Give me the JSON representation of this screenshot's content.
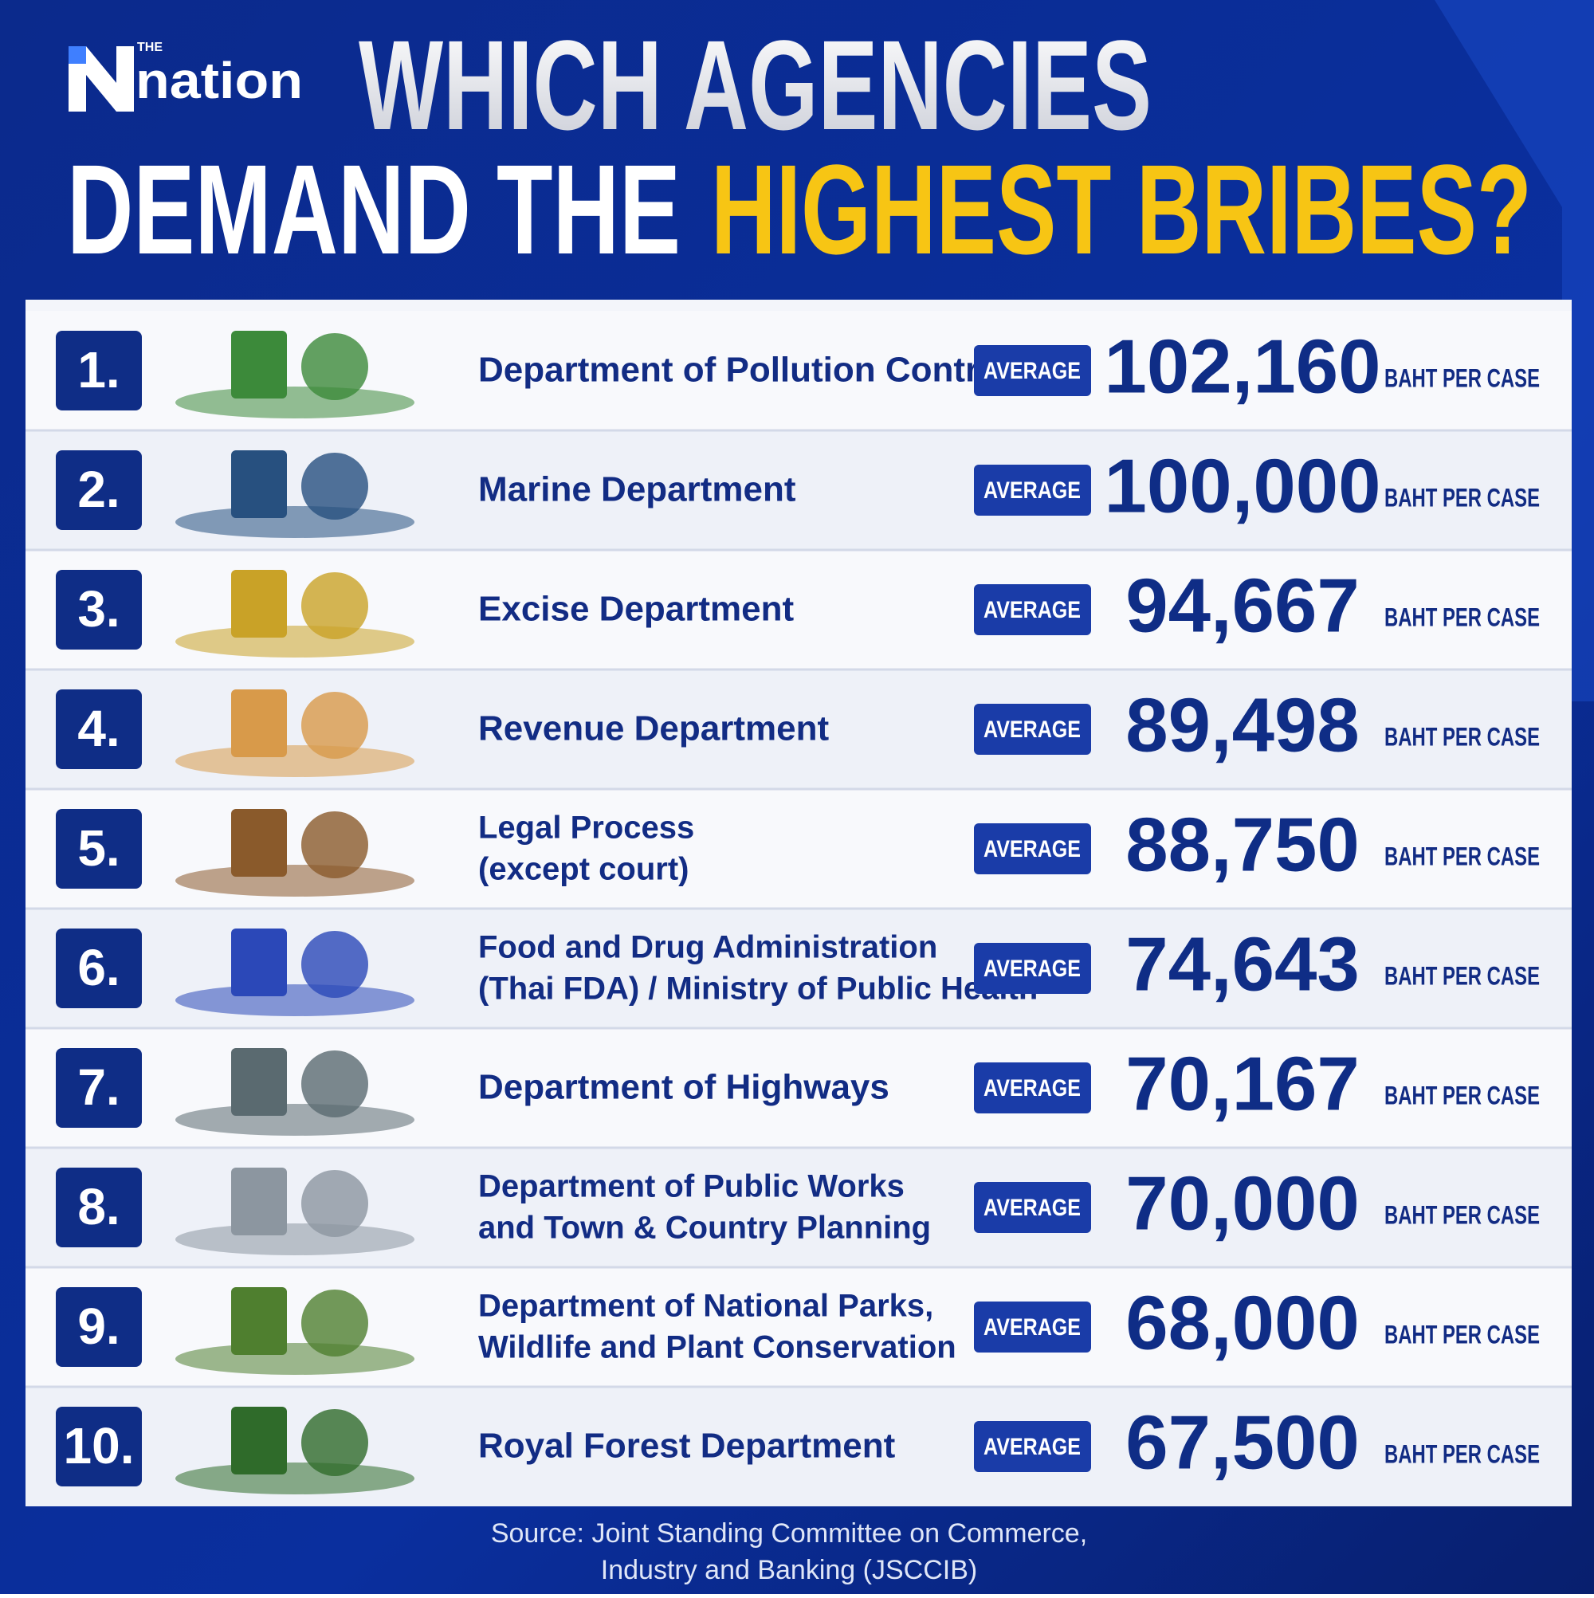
{
  "header": {
    "logo_small": "THE",
    "logo": "nation",
    "title_line1": "WHICH AGENCIES",
    "title_line2_plain": "DEMAND THE",
    "title_line2_highlight": "HIGHEST BRIBES?"
  },
  "table": {
    "badge": "AVERAGE",
    "unit": "BAHT PER CASE",
    "rows": [
      {
        "rank": "1.",
        "name": [
          "Department of Pollution Control"
        ],
        "amount": "102,160"
      },
      {
        "rank": "2.",
        "name": [
          "Marine Department"
        ],
        "amount": "100,000"
      },
      {
        "rank": "3.",
        "name": [
          "Excise Department"
        ],
        "amount": "94,667"
      },
      {
        "rank": "4.",
        "name": [
          "Revenue Department"
        ],
        "amount": "89,498"
      },
      {
        "rank": "5.",
        "name": [
          "Legal Process",
          "(except court)"
        ],
        "amount": "88,750"
      },
      {
        "rank": "6.",
        "name": [
          "Food and Drug Administration",
          "(Thai FDA) / Ministry of Public Health"
        ],
        "amount": "74,643"
      },
      {
        "rank": "7.",
        "name": [
          "Department of Highways"
        ],
        "amount": "70,167"
      },
      {
        "rank": "8.",
        "name": [
          "Department of Public Works",
          "and Town & Country Planning"
        ],
        "amount": "70,000"
      },
      {
        "rank": "9.",
        "name": [
          "Department of National Parks,",
          "Wildlife and Plant Conservation"
        ],
        "amount": "68,000"
      },
      {
        "rank": "10.",
        "name": [
          "Royal Forest Department"
        ],
        "amount": "67,500"
      }
    ]
  },
  "footer": {
    "source": [
      "Source: Joint Standing Committee on Commerce,",
      "Industry and Banking (JSCCIB)"
    ]
  }
}
